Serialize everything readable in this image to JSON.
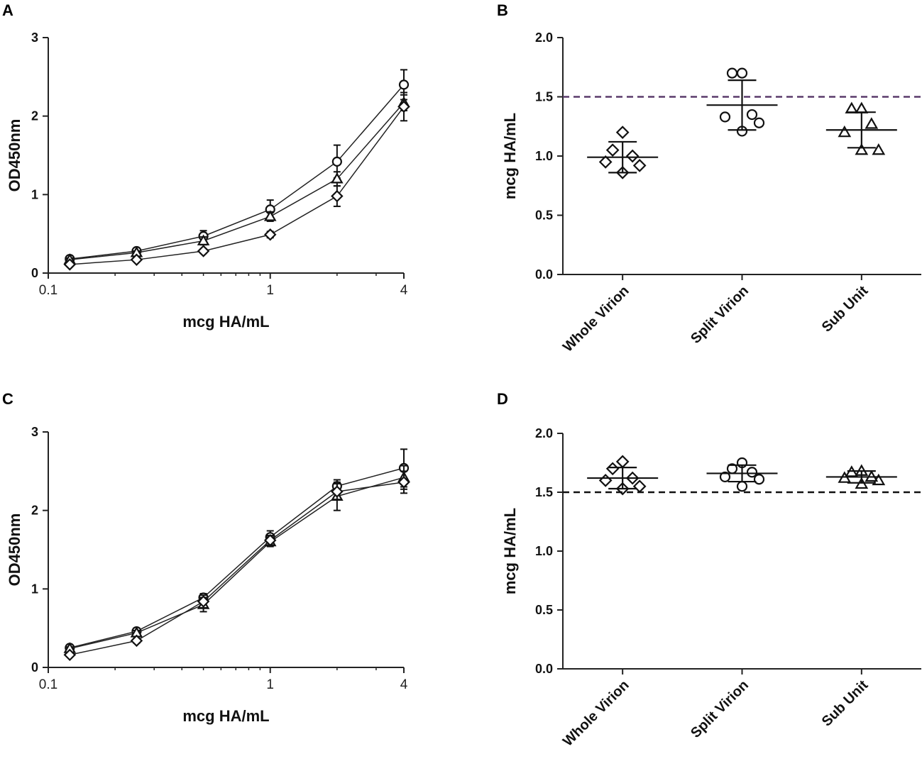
{
  "chart_data": [
    {
      "panel": "A",
      "type": "line",
      "xscale": "log",
      "xlim": [
        0.1,
        4
      ],
      "ylim": [
        0,
        3
      ],
      "xticks": [
        "0.1",
        "1",
        "4"
      ],
      "yticks": [
        "0",
        "1",
        "2",
        "3"
      ],
      "xlabel": "mcg HA/mL",
      "ylabel": "OD450nm",
      "x": [
        0.125,
        0.25,
        0.5,
        1,
        2,
        4
      ],
      "series": [
        {
          "name": "Split Virion",
          "marker": "circle",
          "values": [
            0.18,
            0.28,
            0.47,
            0.81,
            1.42,
            2.4
          ],
          "errors": [
            0.02,
            0.02,
            0.07,
            0.12,
            0.21,
            0.19
          ]
        },
        {
          "name": "Sub Unit",
          "marker": "triangle",
          "values": [
            0.17,
            0.26,
            0.41,
            0.72,
            1.2,
            2.17
          ],
          "errors": [
            0.02,
            0.02,
            0.05,
            0.06,
            0.09,
            0.1
          ]
        },
        {
          "name": "Whole Virion",
          "marker": "diamond",
          "values": [
            0.11,
            0.17,
            0.28,
            0.49,
            0.98,
            2.12
          ],
          "errors": [
            0.02,
            0.02,
            0.03,
            0.04,
            0.13,
            0.18
          ]
        }
      ]
    },
    {
      "panel": "B",
      "type": "scatter",
      "ylim": [
        0,
        2
      ],
      "yticks": [
        "0.0",
        "0.5",
        "1.0",
        "1.5",
        "2.0"
      ],
      "ylabel": "mcg HA/mL",
      "categories": [
        "Whole Virion",
        "Split Virion",
        "Sub Unit"
      ],
      "reference_line": 1.5,
      "reference_color": "#5a3a6b",
      "groups": [
        {
          "name": "Whole Virion",
          "marker": "diamond",
          "points": [
            1.2,
            1.05,
            1.0,
            0.95,
            0.92,
            0.86
          ],
          "mean": 0.99,
          "sd": 0.13
        },
        {
          "name": "Split Virion",
          "marker": "circle",
          "points": [
            1.7,
            1.7,
            1.35,
            1.33,
            1.28,
            1.21
          ],
          "mean": 1.43,
          "sd": 0.21
        },
        {
          "name": "Sub Unit",
          "marker": "triangle",
          "points": [
            1.4,
            1.4,
            1.27,
            1.2,
            1.05,
            1.05
          ],
          "mean": 1.22,
          "sd": 0.15
        }
      ]
    },
    {
      "panel": "C",
      "type": "line",
      "xscale": "log",
      "xlim": [
        0.1,
        4
      ],
      "ylim": [
        0,
        3
      ],
      "xticks": [
        "0.1",
        "1",
        "4"
      ],
      "yticks": [
        "0",
        "1",
        "2",
        "3"
      ],
      "xlabel": "mcg HA/mL",
      "ylabel": "OD450nm",
      "x": [
        0.125,
        0.25,
        0.5,
        1,
        2,
        4
      ],
      "series": [
        {
          "name": "Split Virion",
          "marker": "circle",
          "values": [
            0.25,
            0.46,
            0.89,
            1.66,
            2.31,
            2.54
          ],
          "errors": [
            0.02,
            0.04,
            0.05,
            0.08,
            0.08,
            0.24
          ]
        },
        {
          "name": "Sub Unit",
          "marker": "triangle",
          "values": [
            0.24,
            0.44,
            0.8,
            1.6,
            2.18,
            2.42
          ],
          "errors": [
            0.02,
            0.03,
            0.09,
            0.06,
            0.18,
            0.15
          ]
        },
        {
          "name": "Whole Virion",
          "marker": "diamond",
          "values": [
            0.16,
            0.34,
            0.84,
            1.62,
            2.24,
            2.36
          ],
          "errors": [
            0.02,
            0.03,
            0.08,
            0.06,
            0.1,
            0.14
          ]
        }
      ]
    },
    {
      "panel": "D",
      "type": "scatter",
      "ylim": [
        0,
        2
      ],
      "yticks": [
        "0.0",
        "0.5",
        "1.0",
        "1.5",
        "2.0"
      ],
      "ylabel": "mcg HA/mL",
      "categories": [
        "Whole Virion",
        "Split Virion",
        "Sub Unit"
      ],
      "reference_line": 1.5,
      "reference_color": "#111111",
      "groups": [
        {
          "name": "Whole Virion",
          "marker": "diamond",
          "points": [
            1.76,
            1.7,
            1.62,
            1.6,
            1.55,
            1.53
          ],
          "mean": 1.62,
          "sd": 0.09
        },
        {
          "name": "Split Virion",
          "marker": "circle",
          "points": [
            1.75,
            1.7,
            1.67,
            1.63,
            1.61,
            1.55
          ],
          "mean": 1.66,
          "sd": 0.07
        },
        {
          "name": "Sub Unit",
          "marker": "triangle",
          "points": [
            1.68,
            1.67,
            1.63,
            1.62,
            1.6,
            1.57
          ],
          "mean": 1.63,
          "sd": 0.05
        }
      ]
    }
  ]
}
